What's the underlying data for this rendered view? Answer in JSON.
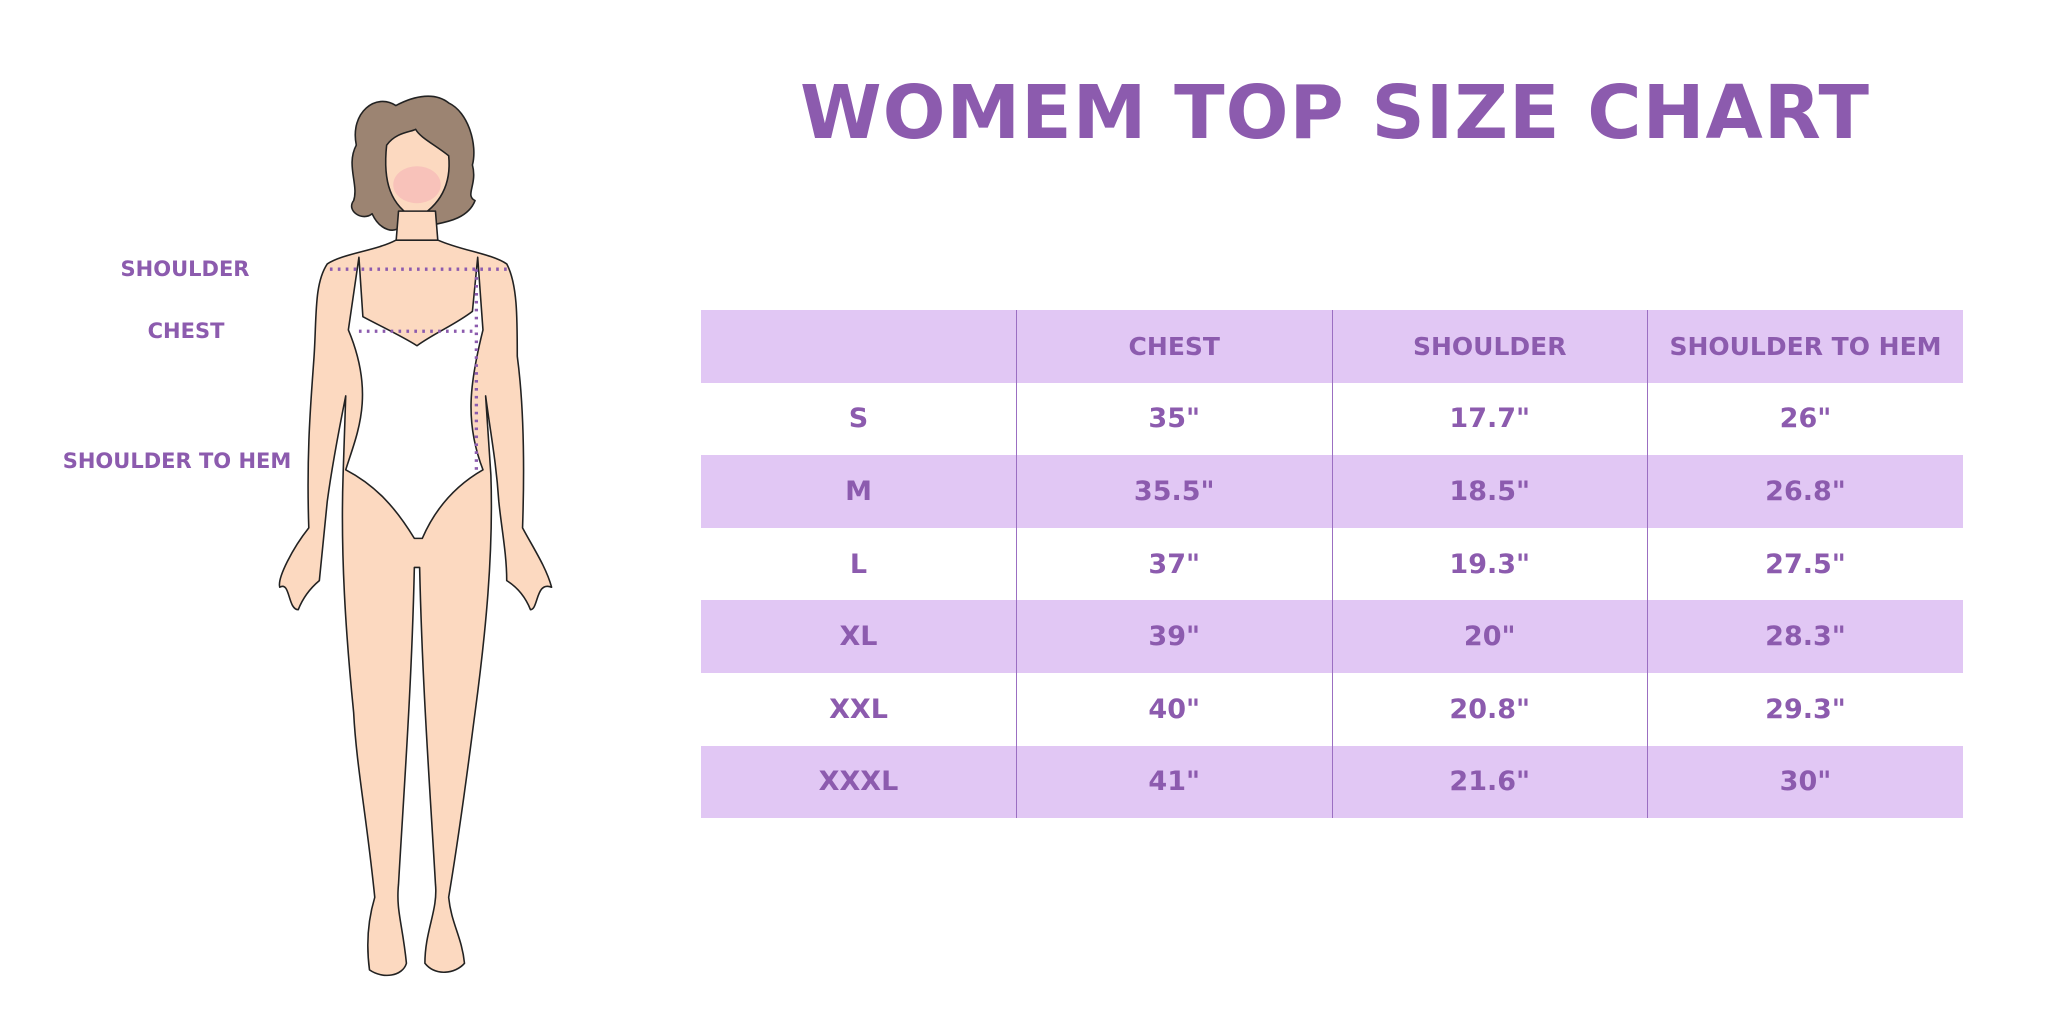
{
  "title": "WOMEM TOP SIZE CHART",
  "figure_labels": {
    "shoulder": "SHOULDER",
    "chest": "CHEST",
    "shoulder_to_hem": "SHOULDER TO HEM"
  },
  "colors": {
    "accent": "#8c5bae",
    "row_shade": "#e1c7f4"
  },
  "table": {
    "headers": [
      "",
      "CHEST",
      "SHOULDER",
      "SHOULDER TO HEM"
    ],
    "rows": [
      [
        "S",
        "35\"",
        "17.7\"",
        "26\""
      ],
      [
        "M",
        "35.5\"",
        "18.5\"",
        "26.8\""
      ],
      [
        "L",
        "37\"",
        "19.3\"",
        "27.5\""
      ],
      [
        "XL",
        "39\"",
        "20\"",
        "28.3\""
      ],
      [
        "XXL",
        "40\"",
        "20.8\"",
        "29.3\""
      ],
      [
        "XXXL",
        "41\"",
        "21.6\"",
        "30\""
      ]
    ]
  }
}
